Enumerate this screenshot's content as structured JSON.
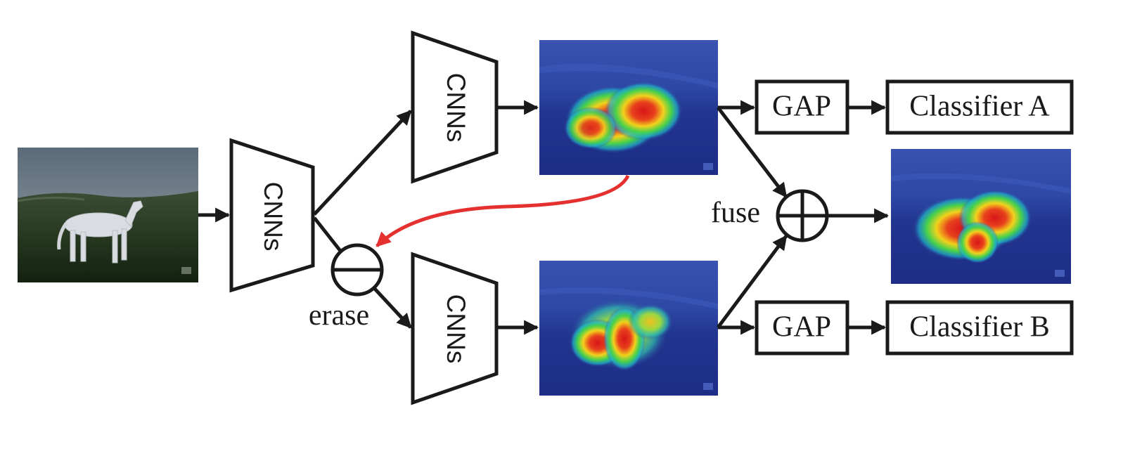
{
  "labels": {
    "cnn_main": "CNNs",
    "cnn_top": "CNNs",
    "cnn_bottom": "CNNs",
    "erase": "erase",
    "fuse": "fuse",
    "gap_a": "GAP",
    "gap_b": "GAP",
    "classifier_a": "Classifier A",
    "classifier_b": "Classifier B"
  },
  "colors": {
    "stroke": "#1a1a1a",
    "erase_arrow": "#e53030",
    "heatmap_bg": "#2a3f9a"
  }
}
